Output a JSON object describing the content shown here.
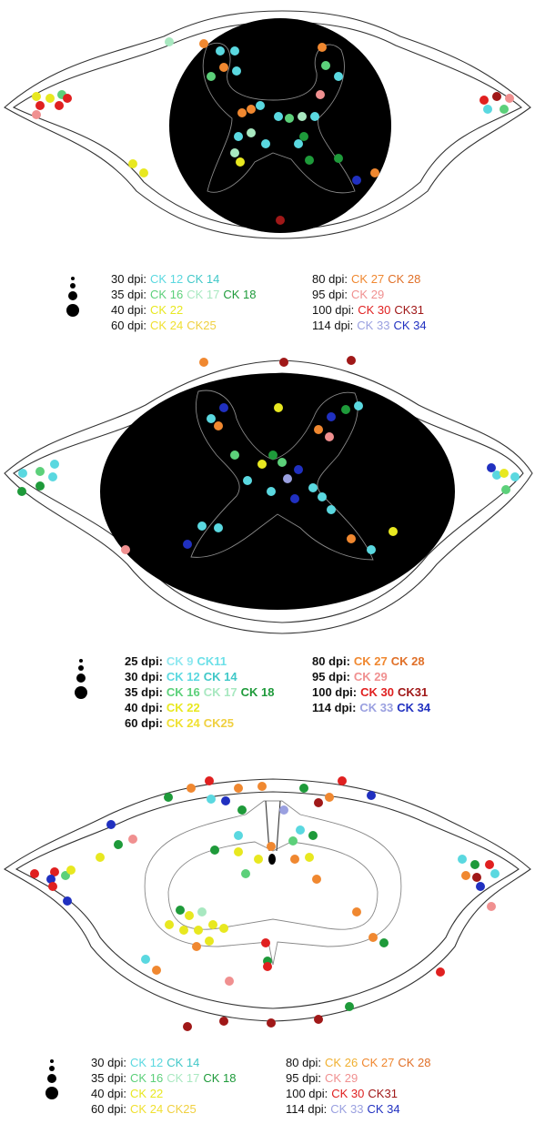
{
  "panels": [
    {
      "legend": {
        "left": [
          {
            "label": "30 dpi:",
            "items": [
              {
                "text": "CK 12",
                "color": "#5ad8e0"
              },
              {
                "text": "CK 14",
                "color": "#40c8c8"
              }
            ]
          },
          {
            "label": "35 dpi:",
            "items": [
              {
                "text": "CK 16",
                "color": "#5cd07a"
              },
              {
                "text": "CK 17",
                "color": "#a8e8c0"
              },
              {
                "text": "CK 18",
                "color": "#1e9a3a"
              }
            ]
          },
          {
            "label": "40 dpi:",
            "items": [
              {
                "text": "CK 22",
                "color": "#e8e820"
              }
            ]
          },
          {
            "label": "60 dpi:",
            "items": [
              {
                "text": "CK 24",
                "color": "#f0e030"
              },
              {
                "text": "CK25",
                "color": "#f0d040"
              }
            ]
          }
        ],
        "right": [
          {
            "label": "80 dpi:",
            "items": [
              {
                "text": "CK 27",
                "color": "#f08830"
              },
              {
                "text": "CK 28",
                "color": "#e07028"
              }
            ]
          },
          {
            "label": "95 dpi:",
            "items": [
              {
                "text": "CK 29",
                "color": "#f09090"
              }
            ]
          },
          {
            "label": "100 dpi:",
            "items": [
              {
                "text": "CK 30",
                "color": "#e02020"
              },
              {
                "text": "CK31",
                "color": "#a01818"
              }
            ]
          },
          {
            "label": "114 dpi:",
            "items": [
              {
                "text": "CK 33",
                "color": "#9aa0e0"
              },
              {
                "text": "CK 34",
                "color": "#2030c0"
              }
            ]
          }
        ]
      }
    },
    {
      "legend": {
        "left": [
          {
            "label": "25 dpi:",
            "items": [
              {
                "text": "CK 9",
                "color": "#90e8f0"
              },
              {
                "text": "CK11",
                "color": "#6ce0e8"
              }
            ]
          },
          {
            "label": "30 dpi:",
            "items": [
              {
                "text": "CK 12",
                "color": "#5ad8e0"
              },
              {
                "text": "CK 14",
                "color": "#40c8c8"
              }
            ]
          },
          {
            "label": "35 dpi:",
            "items": [
              {
                "text": "CK 16",
                "color": "#5cd07a"
              },
              {
                "text": "CK 17",
                "color": "#a8e8c0"
              },
              {
                "text": "CK 18",
                "color": "#1e9a3a"
              }
            ]
          },
          {
            "label": "40 dpi:",
            "items": [
              {
                "text": "CK 22",
                "color": "#e8e820"
              }
            ]
          },
          {
            "label": "60 dpi:",
            "items": [
              {
                "text": "CK 24",
                "color": "#f0e030"
              },
              {
                "text": "CK25",
                "color": "#f0d040"
              }
            ]
          }
        ],
        "right": [
          {
            "label": "80 dpi:",
            "items": [
              {
                "text": "CK 27",
                "color": "#f08830"
              },
              {
                "text": "CK 28",
                "color": "#e07028"
              }
            ]
          },
          {
            "label": "95 dpi:",
            "items": [
              {
                "text": "CK 29",
                "color": "#f09090"
              }
            ]
          },
          {
            "label": "100 dpi:",
            "items": [
              {
                "text": "CK 30",
                "color": "#e02020"
              },
              {
                "text": "CK31",
                "color": "#a01818"
              }
            ]
          },
          {
            "label": "114 dpi:",
            "items": [
              {
                "text": "CK 33",
                "color": "#9aa0e0"
              },
              {
                "text": "CK 34",
                "color": "#2030c0"
              }
            ]
          }
        ]
      }
    },
    {
      "legend": {
        "left": [
          {
            "label": "30 dpi:",
            "items": [
              {
                "text": "CK 12",
                "color": "#5ad8e0"
              },
              {
                "text": "CK 14",
                "color": "#40c8c8"
              }
            ]
          },
          {
            "label": "35 dpi:",
            "items": [
              {
                "text": "CK 16",
                "color": "#5cd07a"
              },
              {
                "text": "CK 17",
                "color": "#a8e8c0"
              },
              {
                "text": "CK 18",
                "color": "#1e9a3a"
              }
            ]
          },
          {
            "label": "40 dpi:",
            "items": [
              {
                "text": "CK 22",
                "color": "#e8e820"
              }
            ]
          },
          {
            "label": "60 dpi:",
            "items": [
              {
                "text": "CK 24",
                "color": "#f0e030"
              },
              {
                "text": "CK25",
                "color": "#f0d040"
              }
            ]
          }
        ],
        "right": [
          {
            "label": "80 dpi:",
            "items": [
              {
                "text": "CK 26",
                "color": "#f0b030"
              },
              {
                "text": "CK 27",
                "color": "#f08830"
              },
              {
                "text": "CK 28",
                "color": "#e07028"
              }
            ]
          },
          {
            "label": "95 dpi:",
            "items": [
              {
                "text": "CK 29",
                "color": "#f09090"
              }
            ]
          },
          {
            "label": "100 dpi:",
            "items": [
              {
                "text": "CK 30",
                "color": "#e02020"
              },
              {
                "text": "CK31",
                "color": "#a01818"
              }
            ]
          },
          {
            "label": "114 dpi:",
            "items": [
              {
                "text": "CK 33",
                "color": "#9aa0e0"
              },
              {
                "text": "CK 34",
                "color": "#2030c0"
              }
            ]
          }
        ]
      }
    }
  ]
}
